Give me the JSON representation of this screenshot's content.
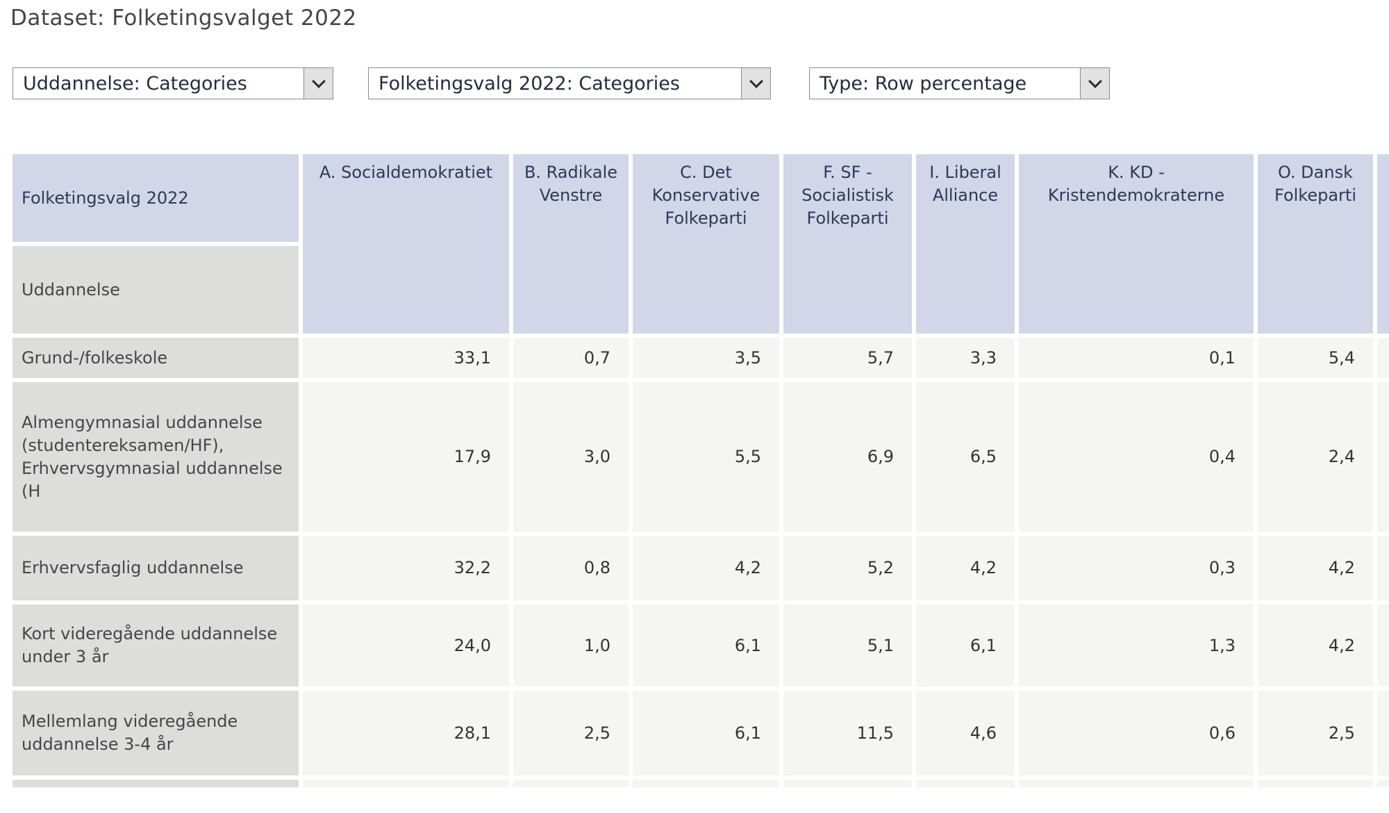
{
  "page": {
    "title": "Dataset: Folketingsvalget 2022"
  },
  "filters": [
    {
      "label": "Uddannelse: Categories"
    },
    {
      "label": "Folketingsvalg 2022: Categories"
    },
    {
      "label": "Type: Row percentage"
    }
  ],
  "table": {
    "corner": {
      "column_dimension": "Folketingsvalg 2022",
      "row_dimension": "Uddannelse"
    },
    "columns": [
      "A. Socialdemokratiet",
      "B. Radikale Venstre",
      "C. Det Konservative Folkeparti",
      "F. SF - Socialistisk Folkeparti",
      "I. Liberal Alliance",
      "K. KD - Kristendemokraterne",
      "O. Dansk Folkeparti"
    ],
    "rows": [
      {
        "label": "Grund-/folkeskole",
        "values": [
          "33,1",
          "0,7",
          "3,5",
          "5,7",
          "3,3",
          "0,1",
          "5,4"
        ]
      },
      {
        "label": "Almengymnasial uddannelse (studentereksamen/HF), Erhvervsgymnasial uddannelse (H",
        "values": [
          "17,9",
          "3,0",
          "5,5",
          "6,9",
          "6,5",
          "0,4",
          "2,4"
        ]
      },
      {
        "label": "Erhvervsfaglig uddannelse",
        "values": [
          "32,2",
          "0,8",
          "4,2",
          "5,2",
          "4,2",
          "0,3",
          "4,2"
        ]
      },
      {
        "label": "Kort videregående uddannelse under 3 år",
        "values": [
          "24,0",
          "1,0",
          "6,1",
          "5,1",
          "6,1",
          "1,3",
          "4,2"
        ]
      },
      {
        "label": "Mellemlang videregående uddannelse 3-4 år",
        "values": [
          "28,1",
          "2,5",
          "6,1",
          "11,5",
          "4,6",
          "0,6",
          "2,5"
        ]
      }
    ],
    "partial_row": {
      "label": "",
      "values": [
        "",
        "",
        "",
        "",
        "",
        "",
        ""
      ]
    }
  },
  "colors": {
    "column_header_bg": "#d1d7e9",
    "row_label_bg": "#dddddb",
    "value_cell_bg": "#f5f5f2",
    "grid_gap": "#ffffff"
  }
}
